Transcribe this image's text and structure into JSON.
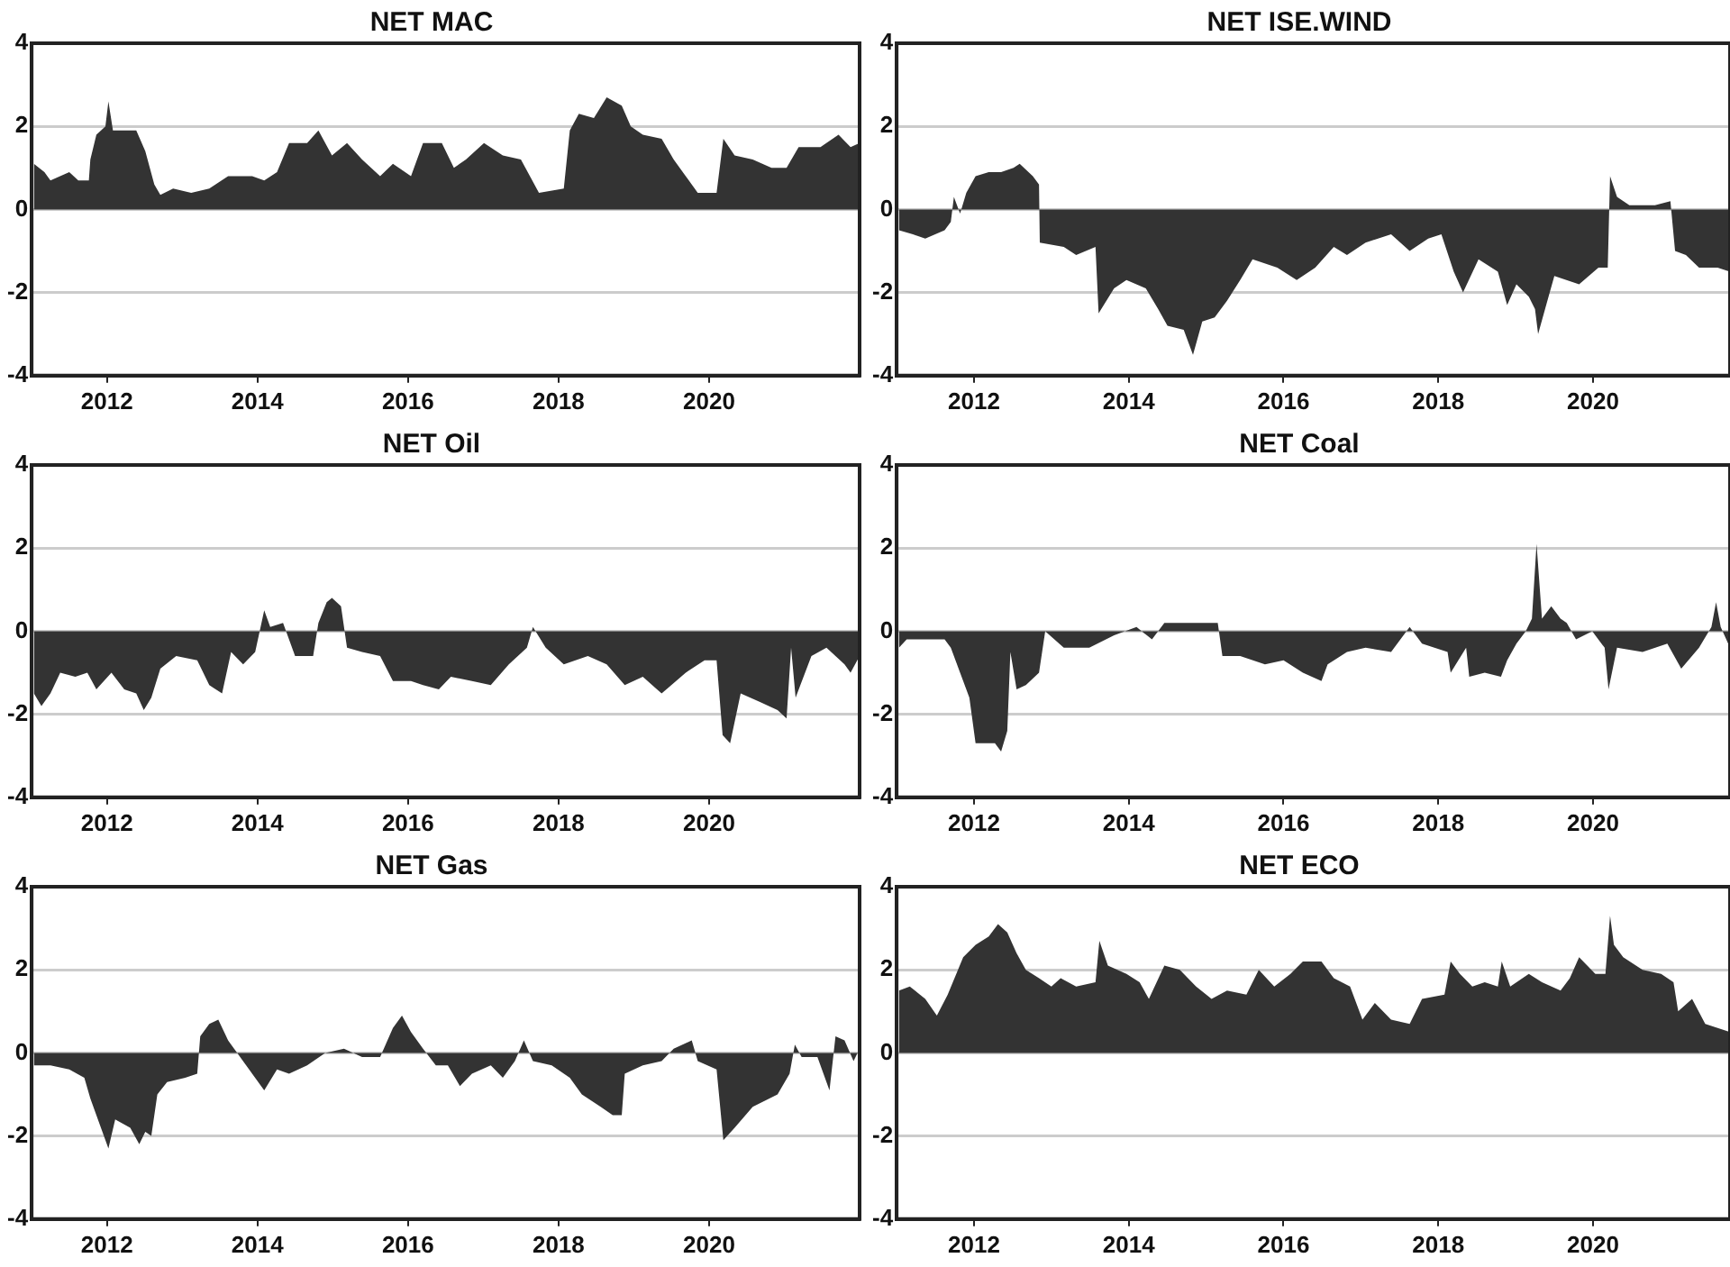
{
  "chart_data": [
    {
      "type": "area",
      "title": "NET MAC",
      "color": "#333333",
      "grid": "y",
      "xlim": [
        2011,
        2022
      ],
      "xticks": [
        2012,
        2014,
        2016,
        2018,
        2020
      ],
      "ylim": [
        -4,
        4
      ],
      "yticks": [
        -4,
        -2,
        0,
        2,
        4
      ],
      "x": [
        2011.03,
        2011.17,
        2011.25,
        2011.5,
        2011.62,
        2011.76,
        2011.78,
        2011.86,
        2011.98,
        2012.02,
        2012.08,
        2012.23,
        2012.39,
        2012.51,
        2012.63,
        2012.71,
        2012.88,
        2013.12,
        2013.36,
        2013.61,
        2013.93,
        2014.09,
        2014.26,
        2014.42,
        2014.66,
        2014.81,
        2014.99,
        2015.19,
        2015.39,
        2015.63,
        2015.8,
        2016.04,
        2016.2,
        2016.45,
        2016.61,
        2016.77,
        2017.01,
        2017.26,
        2017.5,
        2017.74,
        2018.07,
        2018.15,
        2018.27,
        2018.47,
        2018.64,
        2018.84,
        2018.96,
        2019.12,
        2019.37,
        2019.53,
        2019.69,
        2019.85,
        2020.1,
        2020.19,
        2020.34,
        2020.58,
        2020.83,
        2021.03,
        2021.19,
        2021.48,
        2021.72,
        2021.88,
        2022
      ],
      "values": [
        1.1,
        0.9,
        0.7,
        0.9,
        0.7,
        0.7,
        1.2,
        1.8,
        2.0,
        2.6,
        1.9,
        1.9,
        1.9,
        1.4,
        0.6,
        0.35,
        0.5,
        0.4,
        0.5,
        0.8,
        0.8,
        0.7,
        0.9,
        1.6,
        1.6,
        1.9,
        1.3,
        1.6,
        1.2,
        0.8,
        1.1,
        0.8,
        1.6,
        1.6,
        1.0,
        1.2,
        1.6,
        1.3,
        1.2,
        0.4,
        0.5,
        1.9,
        2.3,
        2.2,
        2.7,
        2.5,
        2.0,
        1.8,
        1.7,
        1.2,
        0.8,
        0.4,
        0.4,
        1.7,
        1.3,
        1.2,
        1.0,
        1.0,
        1.5,
        1.5,
        1.8,
        1.5,
        1.6
      ]
    },
    {
      "type": "area",
      "title": "NET ISE.WIND",
      "color": "#333333",
      "grid": "y",
      "xlim": [
        2011,
        2021.77
      ],
      "xticks": [
        2012,
        2014,
        2016,
        2018,
        2020
      ],
      "ylim": [
        -4,
        4
      ],
      "yticks": [
        -4,
        -2,
        0,
        2,
        4
      ],
      "x": [
        2011.03,
        2011.21,
        2011.37,
        2011.62,
        2011.7,
        2011.74,
        2011.82,
        2011.9,
        2012.02,
        2012.19,
        2012.35,
        2012.51,
        2012.59,
        2012.76,
        2012.84,
        2012.85,
        2013.16,
        2013.32,
        2013.57,
        2013.61,
        2013.81,
        2013.97,
        2014.22,
        2014.38,
        2014.5,
        2014.71,
        2014.83,
        2014.95,
        2015.11,
        2015.27,
        2015.44,
        2015.6,
        2015.92,
        2016.17,
        2016.41,
        2016.65,
        2016.82,
        2017.06,
        2017.39,
        2017.63,
        2017.87,
        2018.04,
        2018.2,
        2018.32,
        2018.52,
        2018.77,
        2018.89,
        2019.01,
        2019.17,
        2019.25,
        2019.29,
        2019.38,
        2019.5,
        2019.82,
        2020.07,
        2020.19,
        2020.22,
        2020.31,
        2020.47,
        2020.8,
        2021.0,
        2021.06,
        2021.2,
        2021.37,
        2021.61,
        2021.77
      ],
      "values": [
        -0.5,
        -0.6,
        -0.7,
        -0.5,
        -0.3,
        0.3,
        -0.1,
        0.4,
        0.8,
        0.9,
        0.9,
        1.0,
        1.1,
        0.8,
        0.6,
        -0.8,
        -0.9,
        -1.1,
        -0.9,
        -2.5,
        -1.9,
        -1.7,
        -1.9,
        -2.4,
        -2.8,
        -2.9,
        -3.5,
        -2.7,
        -2.6,
        -2.2,
        -1.7,
        -1.2,
        -1.4,
        -1.7,
        -1.4,
        -0.9,
        -1.1,
        -0.8,
        -0.6,
        -1.0,
        -0.7,
        -0.6,
        -1.5,
        -2.0,
        -1.2,
        -1.5,
        -2.3,
        -1.8,
        -2.1,
        -2.4,
        -3.0,
        -2.4,
        -1.6,
        -1.8,
        -1.4,
        -1.4,
        0.8,
        0.3,
        0.1,
        0.1,
        0.2,
        -1.0,
        -1.1,
        -1.4,
        -1.4,
        -1.5
      ]
    },
    {
      "type": "area",
      "title": "NET Oil",
      "color": "#333333",
      "grid": "y",
      "xlim": [
        2011,
        2022
      ],
      "xticks": [
        2012,
        2014,
        2016,
        2018,
        2020
      ],
      "ylim": [
        -4,
        4
      ],
      "yticks": [
        -4,
        -2,
        0,
        2,
        4
      ],
      "x": [
        2011.03,
        2011.13,
        2011.25,
        2011.38,
        2011.58,
        2011.74,
        2011.86,
        2012.06,
        2012.23,
        2012.39,
        2012.49,
        2012.59,
        2012.71,
        2012.92,
        2013.2,
        2013.36,
        2013.53,
        2013.65,
        2013.81,
        2013.97,
        2014.09,
        2014.17,
        2014.34,
        2014.5,
        2014.74,
        2014.81,
        2014.92,
        2014.99,
        2015.11,
        2015.19,
        2015.39,
        2015.63,
        2015.8,
        2016.04,
        2016.2,
        2016.41,
        2016.57,
        2016.85,
        2017.1,
        2017.34,
        2017.58,
        2017.66,
        2017.83,
        2018.07,
        2018.39,
        2018.64,
        2018.88,
        2019.12,
        2019.37,
        2019.69,
        2019.94,
        2020.1,
        2020.18,
        2020.28,
        2020.42,
        2020.67,
        2020.91,
        2021.03,
        2021.09,
        2021.15,
        2021.36,
        2021.56,
        2021.8,
        2021.88,
        2022
      ],
      "values": [
        -1.5,
        -1.8,
        -1.5,
        -1.0,
        -1.1,
        -1.0,
        -1.4,
        -1.0,
        -1.4,
        -1.5,
        -1.9,
        -1.6,
        -0.9,
        -0.6,
        -0.7,
        -1.3,
        -1.5,
        -0.5,
        -0.8,
        -0.5,
        0.5,
        0.1,
        0.2,
        -0.6,
        -0.6,
        0.2,
        0.7,
        0.8,
        0.6,
        -0.4,
        -0.5,
        -0.6,
        -1.2,
        -1.2,
        -1.3,
        -1.4,
        -1.1,
        -1.2,
        -1.3,
        -0.8,
        -0.4,
        0.1,
        -0.4,
        -0.8,
        -0.6,
        -0.8,
        -1.3,
        -1.1,
        -1.5,
        -1.0,
        -0.7,
        -0.7,
        -2.5,
        -2.7,
        -1.5,
        -1.7,
        -1.9,
        -2.1,
        -0.4,
        -1.6,
        -0.6,
        -0.4,
        -0.8,
        -1.0,
        -0.6
      ]
    },
    {
      "type": "area",
      "title": "NET Coal",
      "color": "#333333",
      "grid": "y",
      "xlim": [
        2011,
        2021.77
      ],
      "xticks": [
        2012,
        2014,
        2016,
        2018,
        2020
      ],
      "ylim": [
        -4,
        4
      ],
      "yticks": [
        -4,
        -2,
        0,
        2,
        4
      ],
      "x": [
        2011.03,
        2011.13,
        2011.62,
        2011.7,
        2011.82,
        2011.94,
        2012.02,
        2012.27,
        2012.35,
        2012.43,
        2012.47,
        2012.55,
        2012.67,
        2012.84,
        2012.92,
        2013.16,
        2013.49,
        2013.81,
        2014.1,
        2014.3,
        2014.46,
        2014.71,
        2014.95,
        2015.15,
        2015.21,
        2015.44,
        2015.76,
        2016.0,
        2016.25,
        2016.49,
        2016.57,
        2016.82,
        2017.06,
        2017.39,
        2017.63,
        2017.79,
        2018.12,
        2018.16,
        2018.36,
        2018.4,
        2018.6,
        2018.81,
        2018.89,
        2019.01,
        2019.13,
        2019.21,
        2019.27,
        2019.34,
        2019.46,
        2019.58,
        2019.66,
        2019.78,
        2019.99,
        2020.15,
        2020.2,
        2020.31,
        2020.64,
        2020.96,
        2021.14,
        2021.37,
        2021.53,
        2021.59,
        2021.65,
        2021.77
      ],
      "values": [
        -0.4,
        -0.2,
        -0.2,
        -0.4,
        -1.0,
        -1.6,
        -2.7,
        -2.7,
        -2.9,
        -2.4,
        -0.5,
        -1.4,
        -1.3,
        -1.0,
        0.0,
        -0.4,
        -0.4,
        -0.1,
        0.1,
        -0.2,
        0.2,
        0.2,
        0.2,
        0.2,
        -0.6,
        -0.6,
        -0.8,
        -0.7,
        -1.0,
        -1.2,
        -0.8,
        -0.5,
        -0.4,
        -0.5,
        0.1,
        -0.3,
        -0.5,
        -1.0,
        -0.4,
        -1.1,
        -1.0,
        -1.1,
        -0.7,
        -0.3,
        0.0,
        0.3,
        2.1,
        0.3,
        0.6,
        0.3,
        0.2,
        -0.2,
        0.0,
        -0.4,
        -1.4,
        -0.4,
        -0.5,
        -0.3,
        -0.9,
        -0.4,
        0.1,
        0.7,
        0.1,
        -0.4
      ]
    },
    {
      "type": "area",
      "title": "NET Gas",
      "color": "#333333",
      "grid": "y",
      "xlim": [
        2011,
        2022
      ],
      "xticks": [
        2012,
        2014,
        2016,
        2018,
        2020
      ],
      "ylim": [
        -4,
        4
      ],
      "yticks": [
        -4,
        -2,
        0,
        2,
        4
      ],
      "x": [
        2011.03,
        2011.25,
        2011.5,
        2011.7,
        2011.78,
        2011.9,
        2012.02,
        2012.11,
        2012.31,
        2012.43,
        2012.51,
        2012.59,
        2012.67,
        2012.8,
        2013.04,
        2013.2,
        2013.24,
        2013.36,
        2013.48,
        2013.61,
        2013.69,
        2013.85,
        2014.09,
        2014.26,
        2014.42,
        2014.66,
        2014.9,
        2015.15,
        2015.39,
        2015.63,
        2015.8,
        2015.92,
        2016.04,
        2016.2,
        2016.37,
        2016.53,
        2016.69,
        2016.85,
        2017.1,
        2017.26,
        2017.42,
        2017.54,
        2017.66,
        2017.91,
        2018.15,
        2018.31,
        2018.56,
        2018.72,
        2018.84,
        2018.88,
        2019.12,
        2019.37,
        2019.53,
        2019.77,
        2019.85,
        2020.1,
        2020.19,
        2020.34,
        2020.58,
        2020.91,
        2021.07,
        2021.14,
        2021.23,
        2021.44,
        2021.6,
        2021.68,
        2021.8,
        2021.92,
        2022
      ],
      "values": [
        -0.3,
        -0.3,
        -0.4,
        -0.6,
        -1.1,
        -1.7,
        -2.3,
        -1.6,
        -1.8,
        -2.2,
        -1.9,
        -2.0,
        -1.0,
        -0.7,
        -0.6,
        -0.5,
        0.4,
        0.7,
        0.8,
        0.3,
        0.1,
        -0.3,
        -0.9,
        -0.4,
        -0.5,
        -0.3,
        0.0,
        0.1,
        -0.1,
        -0.1,
        0.6,
        0.9,
        0.5,
        0.1,
        -0.3,
        -0.3,
        -0.8,
        -0.5,
        -0.3,
        -0.6,
        -0.2,
        0.3,
        -0.2,
        -0.3,
        -0.6,
        -1.0,
        -1.3,
        -1.5,
        -1.5,
        -0.5,
        -0.3,
        -0.2,
        0.1,
        0.3,
        -0.2,
        -0.4,
        -2.1,
        -1.8,
        -1.3,
        -1.0,
        -0.5,
        0.2,
        -0.1,
        -0.1,
        -0.9,
        0.4,
        0.3,
        -0.2,
        0.1
      ]
    },
    {
      "type": "area",
      "title": "NET ECO",
      "color": "#333333",
      "grid": "y",
      "xlim": [
        2011,
        2021.77
      ],
      "xticks": [
        2012,
        2014,
        2016,
        2018,
        2020
      ],
      "ylim": [
        -4,
        4
      ],
      "yticks": [
        -4,
        -2,
        0,
        2,
        4
      ],
      "x": [
        2011.03,
        2011.17,
        2011.37,
        2011.52,
        2011.66,
        2011.86,
        2012.02,
        2012.19,
        2012.31,
        2012.43,
        2012.55,
        2012.67,
        2012.84,
        2013.0,
        2013.12,
        2013.32,
        2013.57,
        2013.62,
        2013.73,
        2013.97,
        2014.14,
        2014.26,
        2014.46,
        2014.66,
        2014.87,
        2015.07,
        2015.27,
        2015.52,
        2015.68,
        2015.88,
        2016.09,
        2016.25,
        2016.49,
        2016.65,
        2016.86,
        2017.02,
        2017.18,
        2017.39,
        2017.63,
        2017.79,
        2018.08,
        2018.16,
        2018.28,
        2018.44,
        2018.6,
        2018.77,
        2018.82,
        2018.93,
        2019.17,
        2019.34,
        2019.58,
        2019.7,
        2019.82,
        2020.03,
        2020.16,
        2020.22,
        2020.27,
        2020.39,
        2020.64,
        2020.88,
        2021.04,
        2021.1,
        2021.28,
        2021.45,
        2021.61,
        2021.77
      ],
      "values": [
        1.5,
        1.6,
        1.3,
        0.9,
        1.4,
        2.3,
        2.6,
        2.8,
        3.1,
        2.9,
        2.4,
        2.0,
        1.8,
        1.6,
        1.8,
        1.6,
        1.7,
        2.7,
        2.1,
        1.9,
        1.7,
        1.3,
        2.1,
        2.0,
        1.6,
        1.3,
        1.5,
        1.4,
        2.0,
        1.6,
        1.9,
        2.2,
        2.2,
        1.8,
        1.6,
        0.8,
        1.2,
        0.8,
        0.7,
        1.3,
        1.4,
        2.2,
        1.9,
        1.6,
        1.7,
        1.6,
        2.2,
        1.6,
        1.9,
        1.7,
        1.5,
        1.8,
        2.3,
        1.9,
        1.9,
        3.3,
        2.6,
        2.3,
        2.0,
        1.9,
        1.7,
        1.0,
        1.3,
        0.7,
        0.6,
        0.5
      ]
    }
  ]
}
